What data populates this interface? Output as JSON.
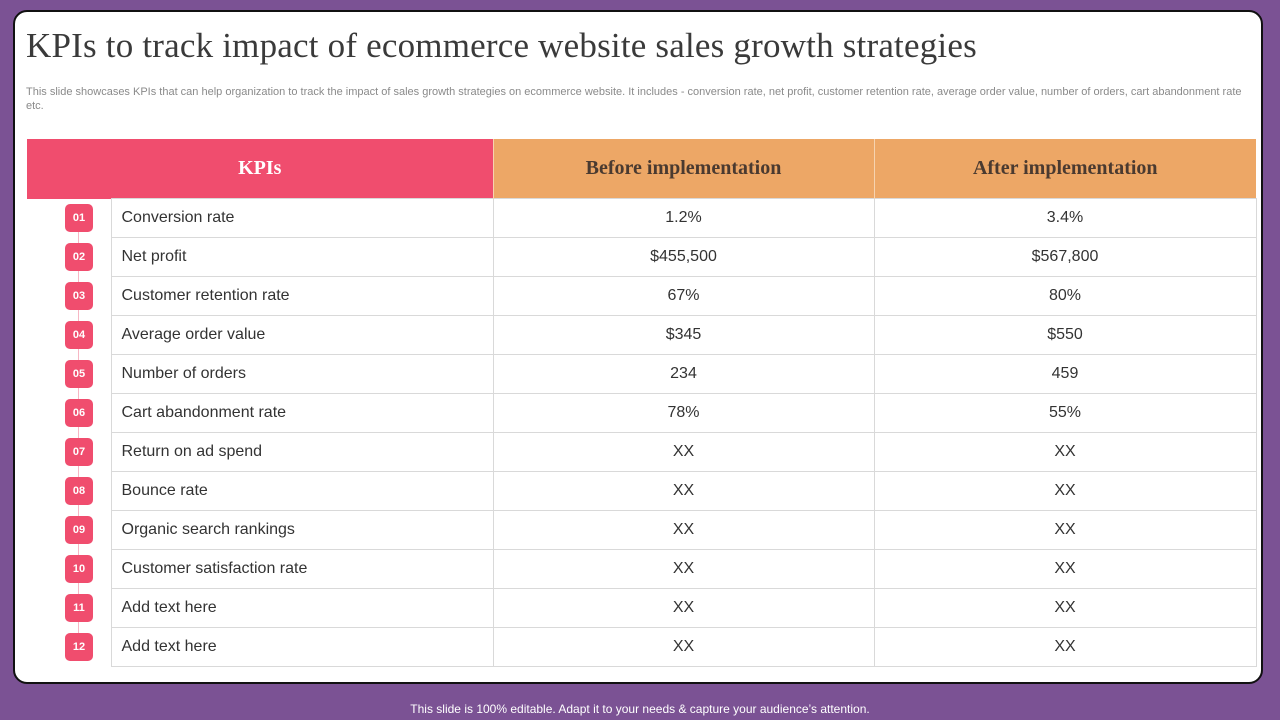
{
  "slide": {
    "title": "KPIs to track impact of ecommerce website sales growth strategies",
    "subtitle": "This slide showcases KPIs that can help organization to track the impact of sales growth strategies on ecommerce website. It includes -  conversion rate, net profit, customer retention rate, average order value, number of orders, cart abandonment rate etc."
  },
  "table": {
    "headers": {
      "kpi": "KPIs",
      "before": "Before implementation",
      "after": "After implementation"
    },
    "rows": [
      {
        "num": "01",
        "kpi": "Conversion rate",
        "before": "1.2%",
        "after": "3.4%"
      },
      {
        "num": "02",
        "kpi": "Net profit",
        "before": "$455,500",
        "after": "$567,800"
      },
      {
        "num": "03",
        "kpi": "Customer retention rate",
        "before": "67%",
        "after": "80%"
      },
      {
        "num": "04",
        "kpi": "Average order value",
        "before": "$345",
        "after": "$550"
      },
      {
        "num": "05",
        "kpi": "Number of orders",
        "before": "234",
        "after": "459"
      },
      {
        "num": "06",
        "kpi": "Cart abandonment rate",
        "before": "78%",
        "after": "55%"
      },
      {
        "num": "07",
        "kpi": "Return on ad spend",
        "before": "XX",
        "after": "XX"
      },
      {
        "num": "08",
        "kpi": "Bounce rate",
        "before": "XX",
        "after": "XX"
      },
      {
        "num": "09",
        "kpi": "Organic search rankings",
        "before": "XX",
        "after": "XX"
      },
      {
        "num": "10",
        "kpi": "Customer satisfaction rate",
        "before": "XX",
        "after": "XX"
      },
      {
        "num": "11",
        "kpi": "Add text here",
        "before": "XX",
        "after": "XX"
      },
      {
        "num": "12",
        "kpi": "Add text here",
        "before": "XX",
        "after": "XX"
      }
    ]
  },
  "footer": {
    "text": "This slide is 100% editable. Adapt it to your needs & capture your audience’s attention."
  },
  "colors": {
    "background": "#7b5294",
    "kpi_header": "#f04d6e",
    "value_header": "#eda766",
    "badge": "#f04d6e"
  }
}
